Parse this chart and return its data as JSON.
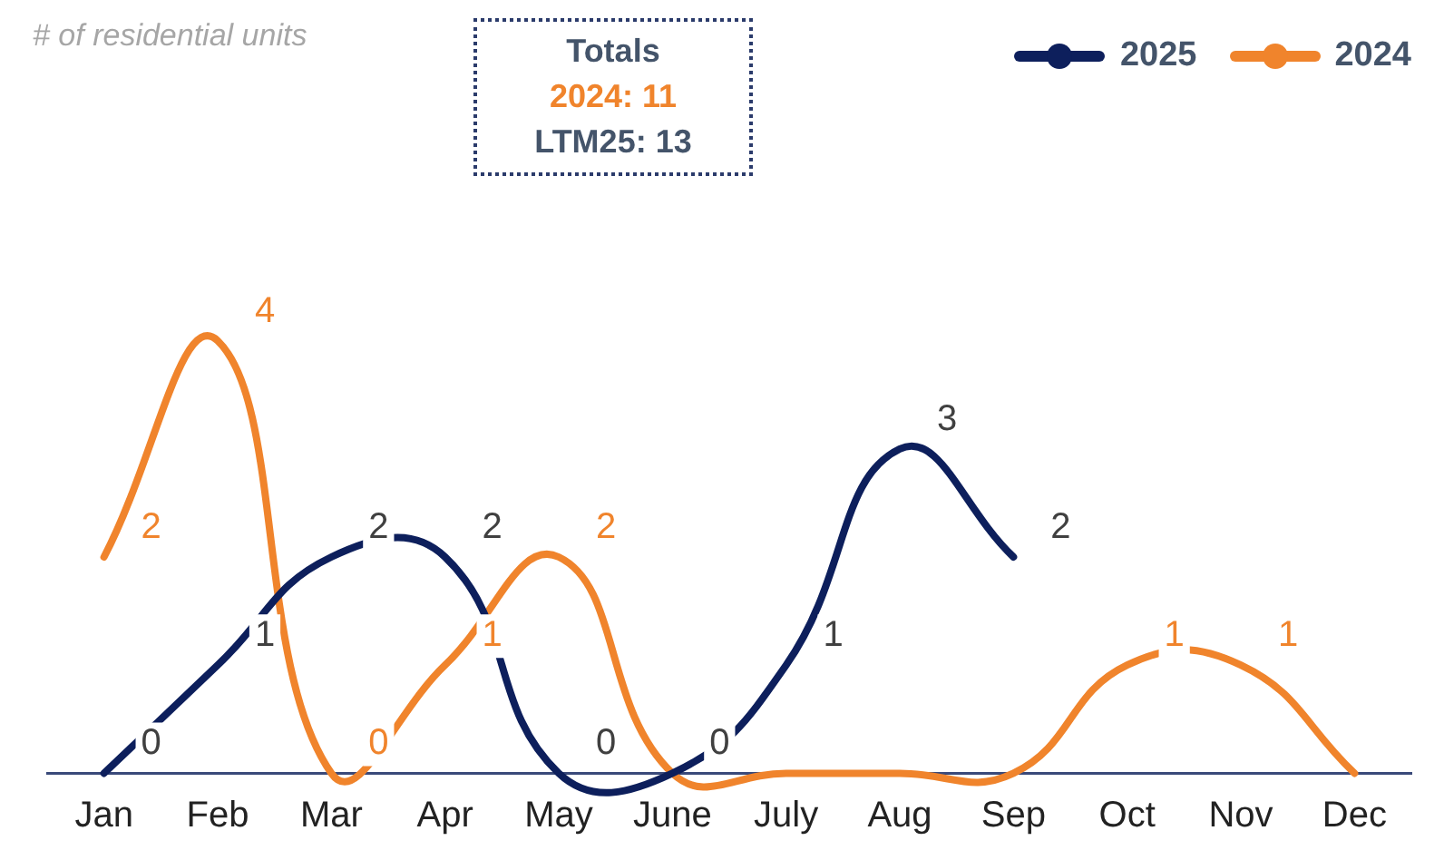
{
  "chart_data": {
    "type": "line",
    "subtitle": "# of residential units",
    "annotations": [
      "Totals",
      "2024: 11",
      "LTM25: 13"
    ],
    "categories": [
      "Jan",
      "Feb",
      "Mar",
      "Apr",
      "May",
      "June",
      "July",
      "Aug",
      "Sep",
      "Oct",
      "Nov",
      "Dec"
    ],
    "series": [
      {
        "name": "2025",
        "color": "#0d1f5c",
        "values": [
          0,
          1,
          2,
          2,
          0,
          0,
          1,
          3,
          2,
          null,
          null,
          null
        ],
        "value_labels": [
          "0",
          "1",
          "2",
          "2",
          "0",
          "0",
          "1",
          "3",
          "2",
          null,
          null,
          null
        ]
      },
      {
        "name": "2024",
        "color": "#f0842c",
        "values": [
          2,
          4,
          0,
          1,
          2,
          0,
          0,
          0,
          0,
          1,
          1,
          0
        ],
        "value_labels": [
          "2",
          "4",
          "0",
          "1",
          "2",
          null,
          null,
          null,
          null,
          "1",
          "1",
          null
        ]
      }
    ],
    "legend": "top right",
    "grid": false,
    "marker": "none",
    "line_style": "solid"
  }
}
